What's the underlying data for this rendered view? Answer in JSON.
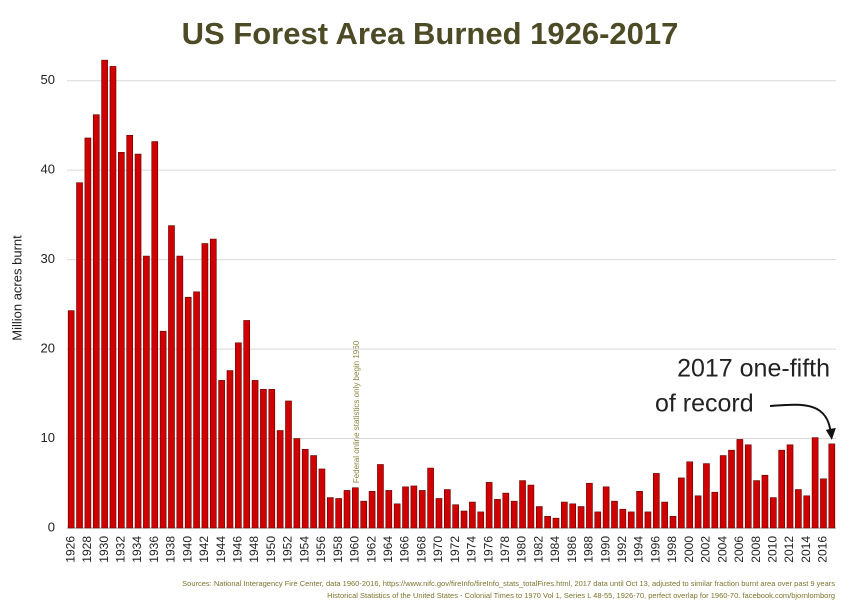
{
  "chart_data": {
    "type": "bar",
    "title": "US Forest Area Burned 1926-2017",
    "y_label": "Million acres burnt",
    "annotation_note": "Federal online statistics only begin 1960",
    "annotation_lines": [
      "2017 one-fifth",
      "of record"
    ],
    "sources": [
      "Sources: National Interagency Fire Center, data 1960-2016, https://www.nifc.gov/fireInfo/fireInfo_stats_totalFires.html, 2017 data until Oct 13, adjusted to similar fraction burnt area over past 9 years",
      "Historical Statistics of the United States - Colonial Times to 1970 Vol 1, Series L 48-55, 1926-70, perfect overlap for 1960-70. facebook.com/bjornlomborg"
    ],
    "categories": [
      "1926",
      null,
      "1928",
      null,
      "1930",
      null,
      "1932",
      null,
      "1934",
      null,
      "1936",
      null,
      "1938",
      null,
      "1940",
      null,
      "1942",
      null,
      "1944",
      null,
      "1946",
      null,
      "1948",
      null,
      "1950",
      null,
      "1952",
      null,
      "1954",
      null,
      "1956",
      null,
      "1958",
      null,
      "1960",
      null,
      "1962",
      null,
      "1964",
      null,
      "1966",
      null,
      "1968",
      null,
      "1970",
      null,
      "1972",
      null,
      "1974",
      null,
      "1976",
      null,
      "1978",
      null,
      "1980",
      null,
      "1982",
      null,
      "1984",
      null,
      "1986",
      null,
      "1988",
      null,
      "1990",
      null,
      "1992",
      null,
      "1994",
      null,
      "1996",
      null,
      "1998",
      null,
      "2000",
      null,
      "2002",
      null,
      "2004",
      null,
      "2006",
      null,
      "2008",
      null,
      "2010",
      null,
      "2012",
      null,
      "2014",
      null,
      "2016",
      null
    ],
    "values": [
      24.3,
      38.6,
      43.6,
      46.2,
      52.3,
      51.6,
      42.0,
      43.9,
      41.8,
      30.4,
      43.2,
      22.0,
      33.8,
      30.4,
      25.8,
      26.4,
      31.8,
      32.3,
      16.5,
      17.6,
      20.7,
      23.2,
      16.5,
      15.5,
      15.5,
      10.9,
      14.2,
      10.0,
      8.8,
      8.1,
      6.6,
      3.4,
      3.3,
      4.2,
      4.5,
      3.0,
      4.1,
      7.1,
      4.2,
      2.7,
      4.6,
      4.7,
      4.2,
      6.7,
      3.3,
      4.3,
      2.6,
      1.9,
      2.9,
      1.8,
      5.1,
      3.2,
      3.9,
      3.0,
      5.3,
      4.8,
      2.4,
      1.3,
      1.1,
      2.9,
      2.7,
      2.4,
      5.0,
      1.8,
      4.6,
      3.0,
      2.1,
      1.8,
      4.1,
      1.8,
      6.1,
      2.9,
      1.3,
      5.6,
      7.4,
      3.6,
      7.2,
      4.0,
      8.1,
      8.7,
      9.9,
      9.3,
      5.3,
      5.9,
      3.4,
      8.7,
      9.3,
      4.3,
      3.6,
      10.1,
      5.5,
      9.4
    ],
    "color": "#d10000",
    "ylim": [
      0,
      55
    ],
    "yticks": [
      0,
      10,
      20,
      30,
      40,
      50
    ],
    "grid": true
  }
}
